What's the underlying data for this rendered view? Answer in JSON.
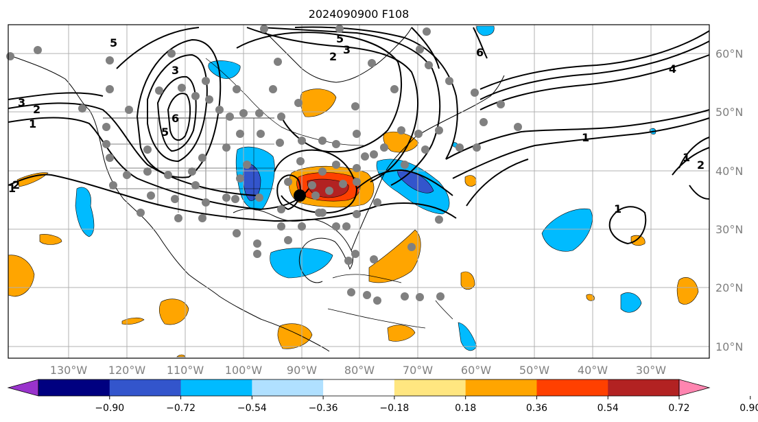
{
  "title": "2024090900 F108",
  "longitude_labels": [
    "130°W",
    "120°W",
    "110°W",
    "100°W",
    "90°W",
    "80°W",
    "70°W",
    "60°W",
    "50°W",
    "40°W",
    "30°W"
  ],
  "latitude_labels": [
    "60°N",
    "50°N",
    "40°N",
    "30°N",
    "20°N",
    "10°N"
  ],
  "colorbar": {
    "ticks": [
      "−0.90",
      "−0.72",
      "−0.54",
      "−0.36",
      "−0.18",
      "0.18",
      "0.36",
      "0.54",
      "0.72",
      "0.90"
    ],
    "colors": [
      "#9933cc",
      "#000080",
      "#3355cc",
      "#00bbff",
      "#b0e0ff",
      "#ffffff",
      "#ffe680",
      "#ffa500",
      "#ff4000",
      "#b22222",
      "#ff85b0"
    ]
  },
  "contour_labels": [
    "1",
    "2",
    "3",
    "5",
    "6",
    "1",
    "2",
    "3",
    "5",
    "6",
    "4",
    "1",
    "1",
    "1",
    "2",
    "2",
    "3",
    "5"
  ],
  "colors": {
    "land_edge": "#000000",
    "grid": "#b0b0b0",
    "station_dot": "#808080",
    "marker": "#000000"
  }
}
